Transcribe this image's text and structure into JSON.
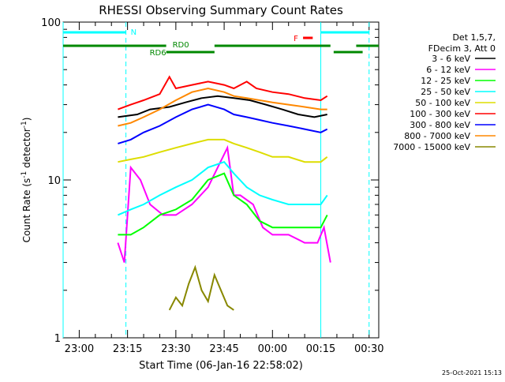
{
  "chart_data": {
    "type": "line",
    "title": "RHESSI Observing Summary Count Rates",
    "xlabel": "Start Time (06-Jan-16 22:58:02)",
    "ylabel_main": "Count Rate (s",
    "ylabel_sup1": "-1",
    "ylabel_mid": " detector",
    "ylabel_sup2": "-1",
    "ylabel_end": ")",
    "y_scale": "log",
    "ylim": [
      1,
      100
    ],
    "y_ticks": [
      {
        "value": 1,
        "label": "1"
      },
      {
        "value": 10,
        "label": "10"
      },
      {
        "value": 100,
        "label": "100"
      }
    ],
    "xlim_minutes": [
      -5,
      93
    ],
    "x_ticks": [
      {
        "min": 0,
        "label": "23:00"
      },
      {
        "min": 15,
        "label": "23:15"
      },
      {
        "min": 30,
        "label": "23:30"
      },
      {
        "min": 45,
        "label": "23:45"
      },
      {
        "min": 60,
        "label": "00:00"
      },
      {
        "min": 75,
        "label": "00:15"
      },
      {
        "min": 90,
        "label": "00:30"
      }
    ],
    "legend_header": [
      "Det 1,5,7,",
      "FDecim 3, Att 0"
    ],
    "series": [
      {
        "name": "3 - 6 keV",
        "color": "#000000",
        "segments": [
          [
            [
              12,
              25
            ],
            [
              18,
              26
            ],
            [
              22,
              28
            ],
            [
              28,
              29
            ],
            [
              33,
              31
            ],
            [
              38,
              33
            ],
            [
              43,
              34
            ],
            [
              48,
              33
            ],
            [
              53,
              32
            ],
            [
              58,
              30
            ],
            [
              63,
              28
            ],
            [
              68,
              26
            ],
            [
              73,
              25
            ],
            [
              77,
              26
            ]
          ]
        ]
      },
      {
        "name": "6 - 12 keV",
        "color": "#ff00ff",
        "segments": [
          [
            [
              12,
              4
            ],
            [
              14,
              3
            ],
            [
              16,
              12
            ],
            [
              19,
              10
            ],
            [
              22,
              7
            ],
            [
              26,
              6
            ],
            [
              30,
              6
            ],
            [
              35,
              7
            ],
            [
              40,
              9
            ],
            [
              43,
              12
            ],
            [
              46,
              16
            ],
            [
              48,
              8
            ],
            [
              50,
              8
            ],
            [
              54,
              7
            ],
            [
              57,
              5
            ],
            [
              60,
              4.5
            ],
            [
              65,
              4.5
            ],
            [
              70,
              4
            ],
            [
              74,
              4
            ],
            [
              76,
              5
            ],
            [
              78,
              3
            ]
          ]
        ]
      },
      {
        "name": "12 - 25 keV",
        "color": "#00ff00",
        "segments": [
          [
            [
              12,
              4.5
            ],
            [
              16,
              4.5
            ],
            [
              20,
              5
            ],
            [
              25,
              6
            ],
            [
              30,
              6.5
            ],
            [
              35,
              7.5
            ],
            [
              40,
              10
            ],
            [
              45,
              11
            ],
            [
              48,
              8
            ],
            [
              52,
              7
            ],
            [
              56,
              5.5
            ],
            [
              60,
              5
            ],
            [
              65,
              5
            ],
            [
              70,
              5
            ],
            [
              75,
              5
            ],
            [
              77,
              6
            ]
          ]
        ]
      },
      {
        "name": "25 - 50 keV",
        "color": "#00ffff",
        "segments": [
          [
            [
              12,
              6
            ],
            [
              16,
              6.5
            ],
            [
              20,
              7
            ],
            [
              25,
              8
            ],
            [
              30,
              9
            ],
            [
              35,
              10
            ],
            [
              40,
              12
            ],
            [
              45,
              13
            ],
            [
              48,
              11
            ],
            [
              52,
              9
            ],
            [
              56,
              8
            ],
            [
              60,
              7.5
            ],
            [
              65,
              7
            ],
            [
              70,
              7
            ],
            [
              75,
              7
            ],
            [
              77,
              8
            ]
          ]
        ]
      },
      {
        "name": "50 - 100 keV",
        "color": "#dddd00",
        "segments": [
          [
            [
              12,
              13
            ],
            [
              16,
              13.5
            ],
            [
              20,
              14
            ],
            [
              25,
              15
            ],
            [
              30,
              16
            ],
            [
              35,
              17
            ],
            [
              40,
              18
            ],
            [
              45,
              18
            ],
            [
              48,
              17
            ],
            [
              52,
              16
            ],
            [
              56,
              15
            ],
            [
              60,
              14
            ],
            [
              65,
              14
            ],
            [
              70,
              13
            ],
            [
              75,
              13
            ],
            [
              77,
              14
            ]
          ]
        ]
      },
      {
        "name": "100 - 300 keV",
        "color": "#ff0000",
        "segments": [
          [
            [
              12,
              28
            ],
            [
              16,
              30
            ],
            [
              20,
              32
            ],
            [
              25,
              35
            ],
            [
              28,
              45
            ],
            [
              30,
              38
            ],
            [
              35,
              40
            ],
            [
              40,
              42
            ],
            [
              45,
              40
            ],
            [
              48,
              38
            ],
            [
              52,
              42
            ],
            [
              55,
              38
            ],
            [
              60,
              36
            ],
            [
              65,
              35
            ],
            [
              70,
              33
            ],
            [
              75,
              32
            ],
            [
              77,
              34
            ]
          ]
        ]
      },
      {
        "name": "300 - 800 keV",
        "color": "#0000ff",
        "segments": [
          [
            [
              12,
              17
            ],
            [
              16,
              18
            ],
            [
              20,
              20
            ],
            [
              25,
              22
            ],
            [
              30,
              25
            ],
            [
              35,
              28
            ],
            [
              40,
              30
            ],
            [
              45,
              28
            ],
            [
              48,
              26
            ],
            [
              52,
              25
            ],
            [
              56,
              24
            ],
            [
              60,
              23
            ],
            [
              65,
              22
            ],
            [
              70,
              21
            ],
            [
              75,
              20
            ],
            [
              77,
              21
            ]
          ]
        ]
      },
      {
        "name": "800 - 7000 keV",
        "color": "#ff8800",
        "segments": [
          [
            [
              12,
              22
            ],
            [
              16,
              23
            ],
            [
              20,
              25
            ],
            [
              25,
              28
            ],
            [
              30,
              32
            ],
            [
              35,
              36
            ],
            [
              40,
              38
            ],
            [
              45,
              36
            ],
            [
              48,
              34
            ],
            [
              52,
              33
            ],
            [
              56,
              32
            ],
            [
              60,
              31
            ],
            [
              65,
              30
            ],
            [
              70,
              29
            ],
            [
              75,
              28
            ],
            [
              77,
              28
            ]
          ]
        ]
      },
      {
        "name": "7000 - 15000 keV",
        "color": "#888800",
        "segments": [
          [
            [
              28,
              1.5
            ],
            [
              30,
              1.8
            ],
            [
              32,
              1.6
            ],
            [
              34,
              2.2
            ],
            [
              36,
              2.8
            ],
            [
              38,
              2.0
            ],
            [
              40,
              1.7
            ],
            [
              42,
              2.5
            ],
            [
              44,
              2.0
            ],
            [
              46,
              1.6
            ],
            [
              48,
              1.5
            ]
          ]
        ]
      }
    ],
    "flags": {
      "N_label": "N",
      "RD0_label": "RD0",
      "RD6_label": "RD6",
      "F_label": "F",
      "N_color": "#00ffff",
      "RD_color": "#008800",
      "F_color": "#ff0000",
      "N_segments": [
        [
          -5,
          14.5
        ],
        [
          75,
          90
        ]
      ],
      "RD0_segments": [
        [
          -5,
          27
        ],
        [
          42,
          78
        ],
        [
          86,
          93
        ]
      ],
      "RD6_segments": [
        [
          27,
          42
        ],
        [
          79,
          88
        ]
      ],
      "F_segments": [
        [
          69.5,
          72.5
        ]
      ],
      "eclipse_lines_min": [
        -5,
        14.5,
        75,
        90
      ]
    }
  },
  "footer": {
    "timestamp": "25-Oct-2021 15:13"
  }
}
